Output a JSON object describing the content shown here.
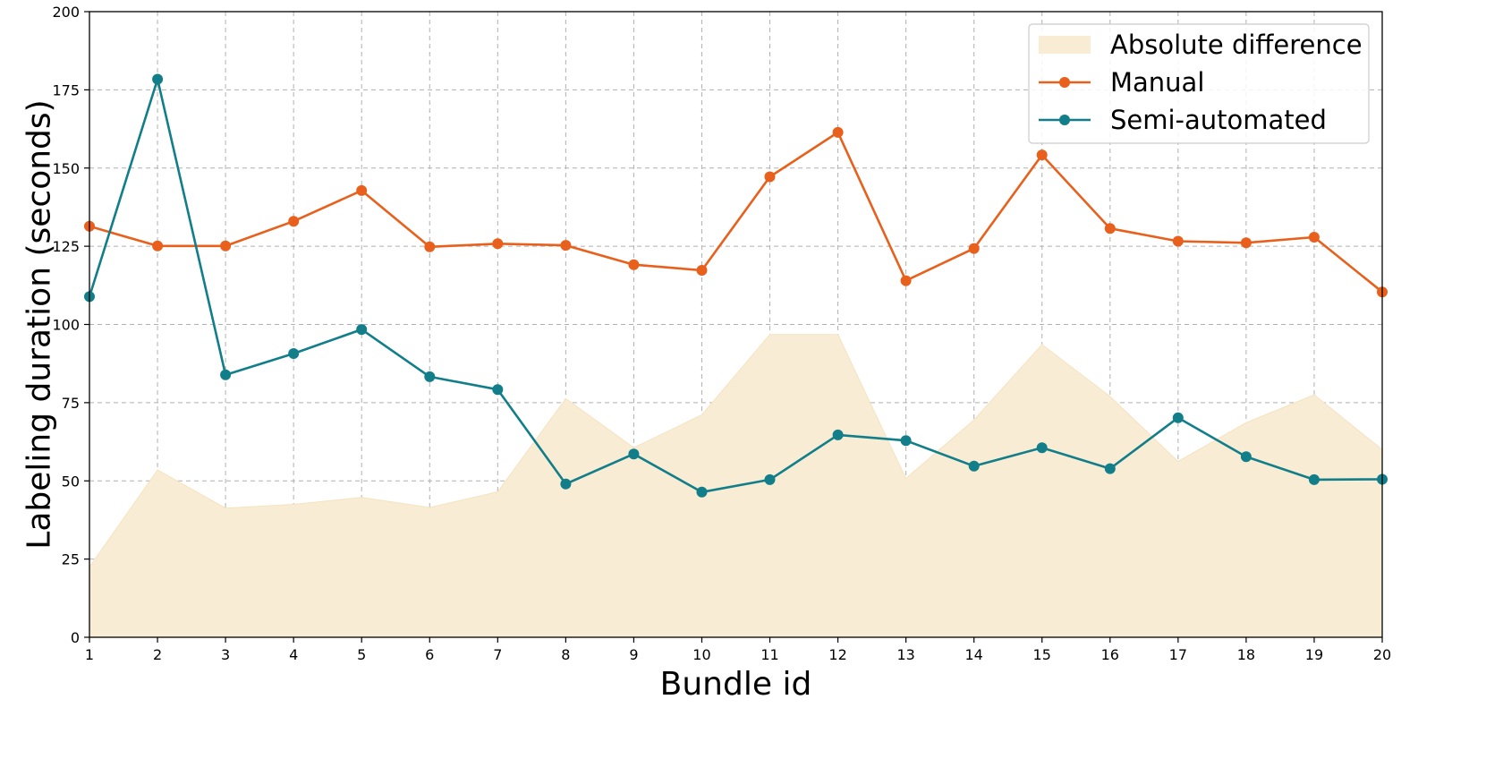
{
  "chart_data": {
    "type": "line",
    "title": "",
    "xlabel": "Bundle id",
    "ylabel": "Labeling duration (seconds)",
    "xlim": [
      1,
      20
    ],
    "ylim": [
      0,
      200
    ],
    "x": [
      1,
      2,
      3,
      4,
      5,
      6,
      7,
      8,
      9,
      10,
      11,
      12,
      13,
      14,
      15,
      16,
      17,
      18,
      19,
      20
    ],
    "x_ticks": [
      "1",
      "2",
      "3",
      "4",
      "5",
      "6",
      "7",
      "8",
      "9",
      "10",
      "11",
      "12",
      "13",
      "14",
      "15",
      "16",
      "17",
      "18",
      "19",
      "20"
    ],
    "y_ticks": [
      "0",
      "25",
      "50",
      "75",
      "100",
      "125",
      "150",
      "175",
      "200"
    ],
    "grid": true,
    "legend_position": "top-right",
    "series": [
      {
        "name": "Absolute difference",
        "kind": "area",
        "color": "#f8ecd5",
        "values": [
          22.5,
          53.5,
          41.3,
          42.5,
          44.7,
          41.5,
          46.5,
          76.3,
          60.6,
          71.1,
          96.8,
          96.8,
          50.8,
          69.5,
          93.6,
          77.0,
          56.2,
          68.6,
          77.5,
          60.0
        ]
      },
      {
        "name": "Manual",
        "kind": "line",
        "color": "#e8601c",
        "values": [
          131.4,
          125.1,
          125.1,
          133.0,
          142.8,
          124.8,
          125.8,
          125.3,
          119.1,
          117.3,
          147.2,
          161.4,
          114.0,
          124.3,
          154.2,
          130.7,
          126.6,
          126.1,
          127.9,
          110.4
        ]
      },
      {
        "name": "Semi-automated",
        "kind": "line",
        "color": "#117e8a",
        "values": [
          108.9,
          178.4,
          83.9,
          90.7,
          98.4,
          83.3,
          79.2,
          49.0,
          58.6,
          46.4,
          50.4,
          64.7,
          62.9,
          54.7,
          60.6,
          53.9,
          70.2,
          57.7,
          50.4,
          50.5
        ]
      }
    ]
  }
}
